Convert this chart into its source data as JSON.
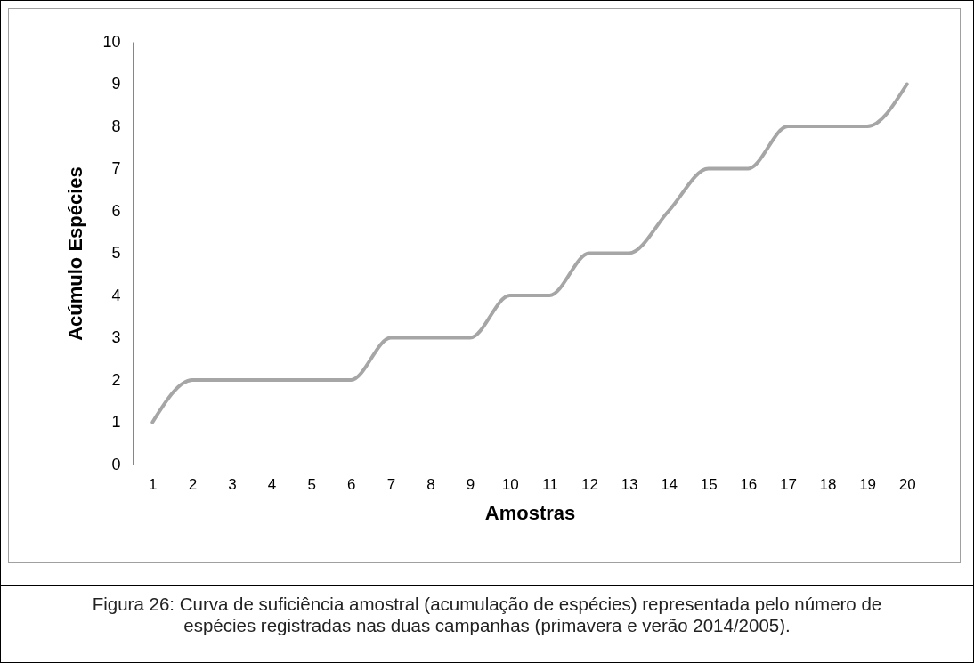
{
  "chart_data": {
    "type": "line",
    "xlabel": "Amostras",
    "ylabel": "Acúmulo Espécies",
    "x": [
      1,
      2,
      3,
      4,
      5,
      6,
      7,
      8,
      9,
      10,
      11,
      12,
      13,
      14,
      15,
      16,
      17,
      18,
      19,
      20
    ],
    "xlim": [
      0.5,
      20.5
    ],
    "xticks": [
      1,
      2,
      3,
      4,
      5,
      6,
      7,
      8,
      9,
      10,
      11,
      12,
      13,
      14,
      15,
      16,
      17,
      18,
      19,
      20
    ],
    "series": [
      {
        "color": "#a6a6a6",
        "values": [
          1,
          2,
          2,
          2,
          2,
          2,
          3,
          3,
          3,
          4,
          4,
          5,
          5,
          6,
          7,
          7,
          8,
          8,
          8,
          9
        ]
      }
    ],
    "ylim": [
      0,
      10
    ],
    "yticks": [
      0,
      1,
      2,
      3,
      4,
      5,
      6,
      7,
      8,
      9,
      10
    ],
    "grid": false,
    "marker": "none",
    "line_style": "solid",
    "annotations": [
      "Figura 26: Curva de suficiência amostral (acumulação de espécies) representada pelo número de espécies registradas nas duas campanhas (primavera e verão 2014/2005)."
    ]
  }
}
